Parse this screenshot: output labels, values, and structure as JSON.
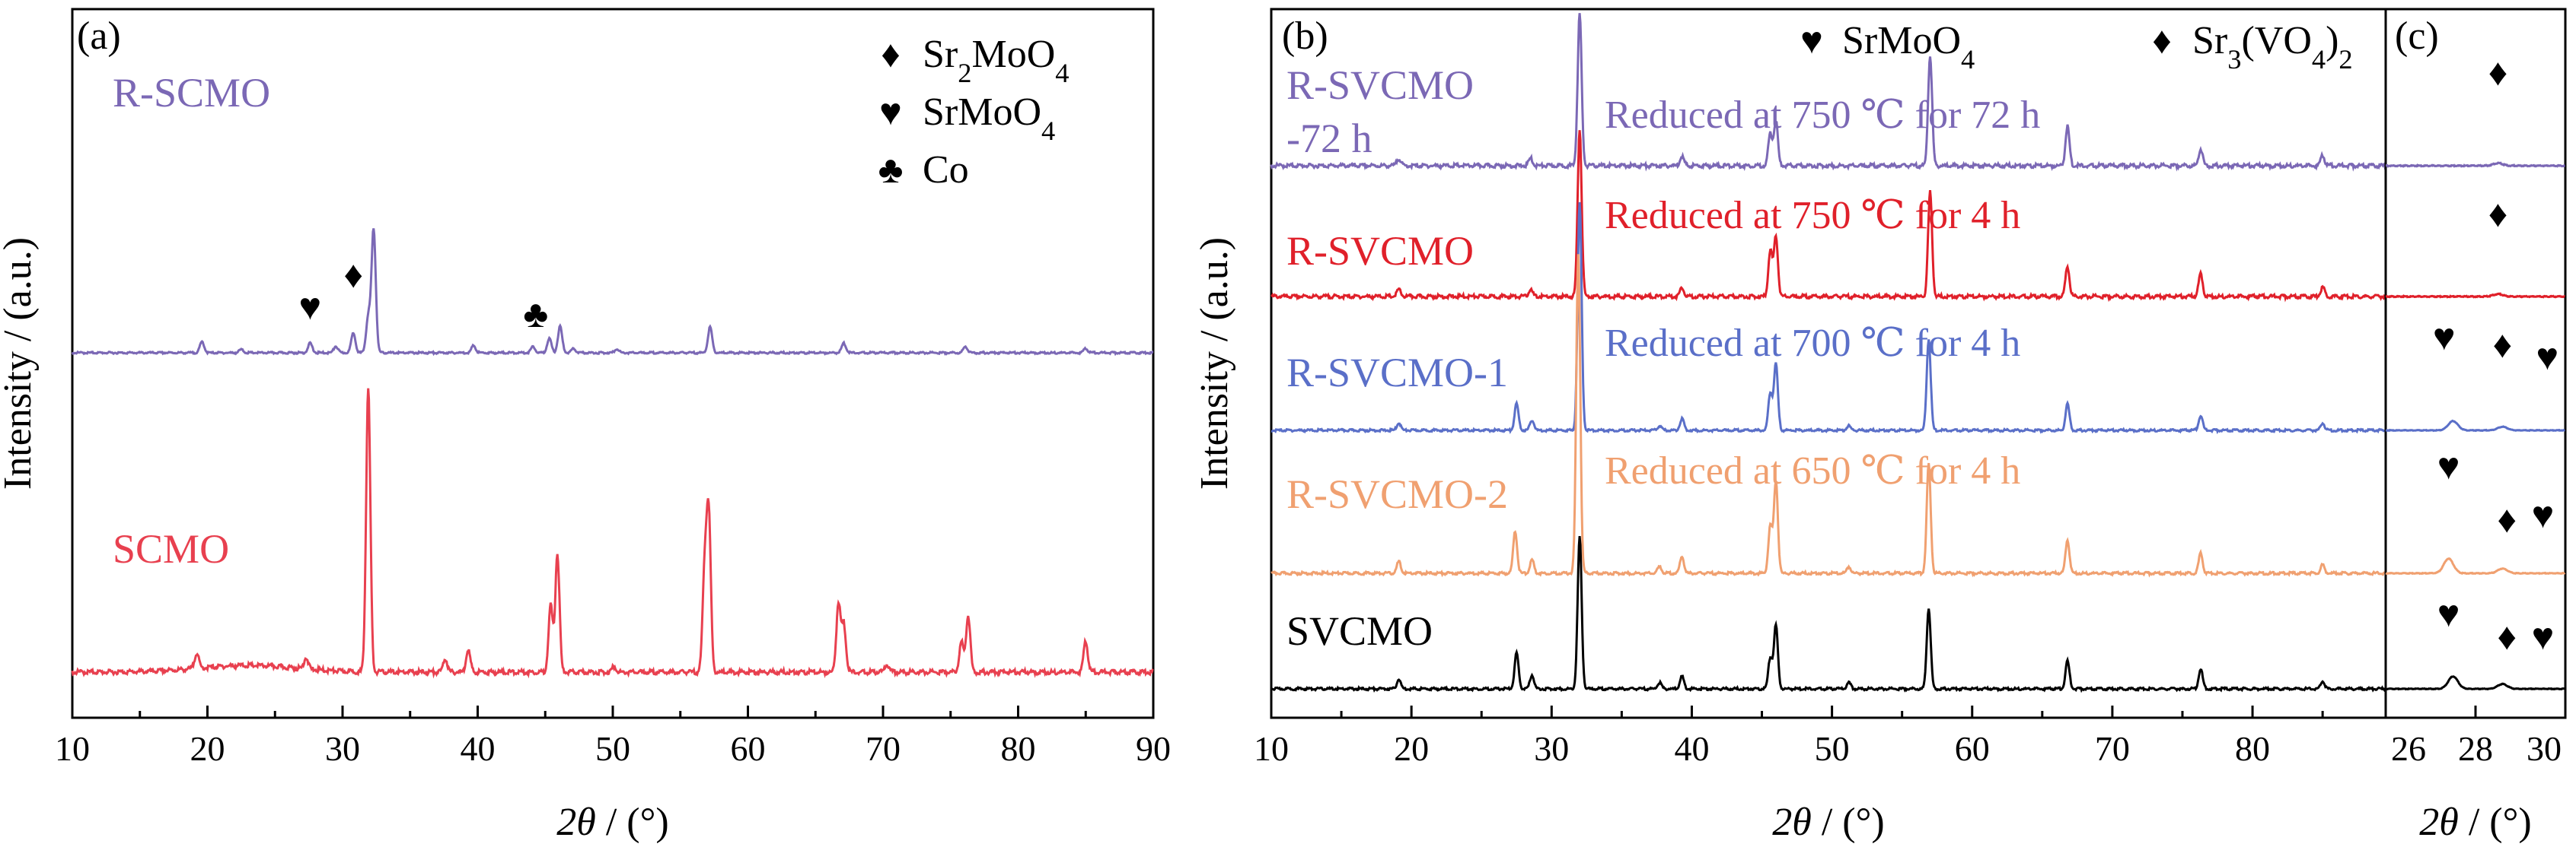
{
  "chart_data": [
    {
      "panel": "(a)",
      "type": "line",
      "xlabel": "2θ / (°)",
      "ylabel": "Intensity / (a.u.)",
      "xlim": [
        10,
        90
      ],
      "xticks": [
        10,
        20,
        30,
        40,
        50,
        60,
        70,
        80,
        90
      ],
      "legend": [
        {
          "symbol": "♦",
          "label": "Sr₂MoO₄"
        },
        {
          "symbol": "♥",
          "label": "SrMoO₄"
        },
        {
          "symbol": "♣",
          "label": "Co"
        }
      ],
      "series": [
        {
          "name": "R-SCMO",
          "color": "#7b68b5",
          "baseline": 1.55,
          "peaks": [
            [
              19.6,
              0.14
            ],
            [
              22.5,
              0.04
            ],
            [
              27.6,
              0.12
            ],
            [
              29.5,
              0.08
            ],
            [
              30.8,
              0.25
            ],
            [
              31.9,
              0.45
            ],
            [
              32.3,
              1.55
            ],
            [
              39.7,
              0.09
            ],
            [
              44.1,
              0.08
            ],
            [
              45.3,
              0.18
            ],
            [
              46.1,
              0.33
            ],
            [
              47.1,
              0.05
            ],
            [
              50.3,
              0.05
            ],
            [
              57.2,
              0.32
            ],
            [
              67.1,
              0.12
            ],
            [
              76.1,
              0.08
            ],
            [
              85.0,
              0.05
            ]
          ],
          "markers": [
            {
              "x": 27.6,
              "symbol": "♥"
            },
            {
              "x": 30.8,
              "symbol": "♦"
            },
            {
              "x": 44.3,
              "symbol": "♣"
            }
          ]
        },
        {
          "name": "SCMO",
          "color": "#e8404f",
          "baseline": 0.0,
          "peaks": [
            [
              19.2,
              0.08
            ],
            [
              27.3,
              0.06
            ],
            [
              31.9,
              1.5
            ],
            [
              37.6,
              0.07
            ],
            [
              39.3,
              0.12
            ],
            [
              45.4,
              0.35
            ],
            [
              45.9,
              0.62
            ],
            [
              50.1,
              0.03
            ],
            [
              56.8,
              0.52
            ],
            [
              57.1,
              0.82
            ],
            [
              66.7,
              0.36
            ],
            [
              67.1,
              0.25
            ],
            [
              70.3,
              0.04
            ],
            [
              75.8,
              0.16
            ],
            [
              76.3,
              0.3
            ],
            [
              85.0,
              0.16
            ]
          ]
        }
      ]
    },
    {
      "panel": "(b)",
      "type": "line",
      "xlabel": "2θ / (°)",
      "ylabel": "Intensity / (a.u.)",
      "xlim": [
        10,
        89.5
      ],
      "xticks": [
        10,
        20,
        30,
        40,
        50,
        60,
        70,
        80
      ],
      "legend": [
        {
          "symbol": "♥",
          "label": "SrMoO₄"
        },
        {
          "symbol": "♦",
          "label": "Sr₃(VO₄)₂"
        }
      ],
      "series": [
        {
          "name": "R-SVCMO -72 h",
          "label_lines": [
            "R-SVCMO",
            "-72 h"
          ],
          "annotation": "Reduced at 750 ℃ for 72 h",
          "color": "#7b68b5",
          "offset": 4
        },
        {
          "name": "R-SVCMO",
          "label_lines": [
            "R-SVCMO"
          ],
          "annotation": "Reduced at 750 ℃ for 4 h",
          "color": "#e0202a",
          "offset": 3
        },
        {
          "name": "R-SVCMO-1",
          "label_lines": [
            "R-SVCMO-1"
          ],
          "annotation": "Reduced at 700 ℃ for 4 h",
          "color": "#5a6fc8",
          "offset": 2
        },
        {
          "name": "R-SVCMO-2",
          "label_lines": [
            "R-SVCMO-2"
          ],
          "annotation": "Reduced at 650 ℃ for 4 h",
          "color": "#f0a070",
          "offset": 1
        },
        {
          "name": "SVCMO",
          "label_lines": [
            "SVCMO"
          ],
          "annotation": "",
          "color": "#000000",
          "offset": 0
        }
      ],
      "peaks": {
        "R-SVCMO -72 h": [
          [
            19.1,
            0.03
          ],
          [
            28.5,
            0.03
          ],
          [
            32.0,
            0.62
          ],
          [
            39.3,
            0.04
          ],
          [
            45.6,
            0.13
          ],
          [
            46.0,
            0.18
          ],
          [
            57.0,
            0.45
          ],
          [
            66.8,
            0.16
          ],
          [
            76.3,
            0.07
          ],
          [
            85.0,
            0.04
          ]
        ],
        "R-SVCMO": [
          [
            19.1,
            0.03
          ],
          [
            28.5,
            0.03
          ],
          [
            32.0,
            0.72
          ],
          [
            39.3,
            0.04
          ],
          [
            45.6,
            0.2
          ],
          [
            46.0,
            0.26
          ],
          [
            57.0,
            0.45
          ],
          [
            66.8,
            0.13
          ],
          [
            76.3,
            0.1
          ],
          [
            85.0,
            0.04
          ]
        ],
        "R-SVCMO-1": [
          [
            19.1,
            0.05
          ],
          [
            27.5,
            0.18
          ],
          [
            28.6,
            0.07
          ],
          [
            32.0,
            1.55
          ],
          [
            37.7,
            0.03
          ],
          [
            39.3,
            0.08
          ],
          [
            45.6,
            0.25
          ],
          [
            46.0,
            0.45
          ],
          [
            51.2,
            0.03
          ],
          [
            56.9,
            0.62
          ],
          [
            66.8,
            0.18
          ],
          [
            76.3,
            0.1
          ],
          [
            85.0,
            0.05
          ]
        ],
        "R-SVCMO-2": [
          [
            19.1,
            0.07
          ],
          [
            27.4,
            0.25
          ],
          [
            28.6,
            0.08
          ],
          [
            31.9,
            1.9
          ],
          [
            37.7,
            0.04
          ],
          [
            39.3,
            0.1
          ],
          [
            45.6,
            0.28
          ],
          [
            46.0,
            0.55
          ],
          [
            51.2,
            0.04
          ],
          [
            56.9,
            0.65
          ],
          [
            66.8,
            0.2
          ],
          [
            76.3,
            0.12
          ],
          [
            85.0,
            0.05
          ]
        ],
        "SVCMO": [
          [
            19.1,
            0.06
          ],
          [
            27.5,
            0.23
          ],
          [
            28.6,
            0.09
          ],
          [
            32.0,
            0.98
          ],
          [
            37.7,
            0.04
          ],
          [
            39.3,
            0.08
          ],
          [
            45.6,
            0.2
          ],
          [
            46.0,
            0.41
          ],
          [
            51.2,
            0.04
          ],
          [
            56.9,
            0.52
          ],
          [
            66.8,
            0.18
          ],
          [
            76.3,
            0.13
          ],
          [
            85.0,
            0.05
          ]
        ]
      }
    },
    {
      "panel": "(c)",
      "type": "line",
      "xlabel": "2θ / (°)",
      "xlim": [
        26,
        30
      ],
      "xticks": [
        26,
        28,
        30
      ],
      "markers": [
        {
          "series": "R-SVCMO -72 h",
          "items": [
            {
              "x": 28.5,
              "symbol": "♦"
            }
          ]
        },
        {
          "series": "R-SVCMO",
          "items": [
            {
              "x": 28.5,
              "symbol": "♦"
            }
          ]
        },
        {
          "series": "R-SVCMO-1",
          "items": [
            {
              "x": 27.3,
              "symbol": "♥"
            },
            {
              "x": 28.6,
              "symbol": "♦"
            },
            {
              "x": 29.6,
              "symbol": "♥"
            }
          ]
        },
        {
          "series": "R-SVCMO-2",
          "items": [
            {
              "x": 27.4,
              "symbol": "♥"
            },
            {
              "x": 28.7,
              "symbol": "♦"
            },
            {
              "x": 29.5,
              "symbol": "♥"
            }
          ]
        },
        {
          "series": "SVCMO",
          "items": [
            {
              "x": 27.4,
              "symbol": "♥"
            },
            {
              "x": 28.7,
              "symbol": "♦"
            },
            {
              "x": 29.5,
              "symbol": "♥"
            }
          ]
        }
      ]
    }
  ]
}
